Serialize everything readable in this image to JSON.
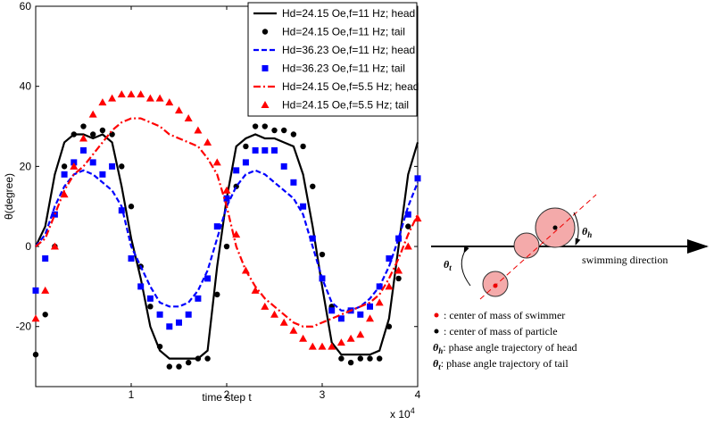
{
  "chart_data": {
    "type": "line",
    "x": [
      0,
      0.1,
      0.2,
      0.3,
      0.4,
      0.5,
      0.6,
      0.7,
      0.8,
      0.9,
      1,
      1.1,
      1.2,
      1.3,
      1.4,
      1.5,
      1.6,
      1.7,
      1.8,
      1.9,
      2,
      2.1,
      2.2,
      2.3,
      2.4,
      2.5,
      2.6,
      2.7,
      2.8,
      2.9,
      3,
      3.1,
      3.2,
      3.3,
      3.4,
      3.5,
      3.6,
      3.7,
      3.8,
      3.9,
      4
    ],
    "xlim": [
      0,
      4
    ],
    "xticks": [
      1,
      2,
      3,
      4
    ],
    "ylim": [
      -35,
      60
    ],
    "yticks": [
      -20,
      0,
      20,
      40,
      60
    ],
    "x_label": "time step t",
    "y_label": "θ(degree)",
    "x_multiplier": "x 10",
    "x_multiplier_exponent": "4",
    "legend": "upper right",
    "series": [
      {
        "name": "Hd=24.15 Oe,f=11 Hz; head",
        "color": "#000000",
        "style": "solid",
        "values": [
          0,
          5,
          18,
          26,
          28,
          28,
          27,
          28,
          26,
          15,
          2,
          -8,
          -20,
          -26,
          -28,
          -28,
          -28,
          -28,
          -26,
          -5,
          12,
          25,
          27,
          28,
          27,
          27,
          26,
          25,
          18,
          5,
          -10,
          -24,
          -27,
          -27,
          -27,
          -27,
          -26,
          -18,
          0,
          18,
          26
        ]
      },
      {
        "name": "Hd=24.15 Oe,f=11 Hz; tail",
        "color": "#000000",
        "style": "circle",
        "values": [
          -27,
          -17,
          0,
          20,
          28,
          30,
          28,
          29,
          28,
          20,
          10,
          -5,
          -15,
          -25,
          -30,
          -30,
          -29,
          -28,
          -28,
          -12,
          0,
          15,
          25,
          30,
          30,
          29,
          29,
          28,
          25,
          15,
          -2,
          -15,
          -28,
          -29,
          -28,
          -28,
          -28,
          -20,
          -8,
          5,
          17
        ]
      },
      {
        "name": "Hd=36.23 Oe,f=11 Hz; head",
        "color": "#0000ff",
        "style": "dashed",
        "values": [
          0,
          3,
          10,
          15,
          18,
          19,
          18,
          16,
          14,
          10,
          0,
          -5,
          -10,
          -14,
          -15,
          -15,
          -14,
          -11,
          -6,
          2,
          10,
          15,
          18,
          19,
          18,
          16,
          14,
          12,
          8,
          0,
          -8,
          -14,
          -16,
          -16,
          -15,
          -13,
          -10,
          -5,
          2,
          10,
          16
        ]
      },
      {
        "name": "Hd=36.23 Oe,f=11 Hz; tail",
        "color": "#0000ff",
        "style": "square",
        "values": [
          -11,
          -3,
          8,
          18,
          21,
          24,
          21,
          18,
          20,
          9,
          -3,
          -10,
          -13,
          -17,
          -20,
          -19,
          -17,
          -13,
          -8,
          5,
          12,
          19,
          21,
          24,
          24,
          24,
          20,
          16,
          10,
          2,
          -8,
          -16,
          -18,
          -16,
          -17,
          -15,
          -10,
          -3,
          2,
          8,
          17
        ]
      },
      {
        "name": "Hd=24.15 Oe,f=5.5 Hz; head",
        "color": "#ff0000",
        "style": "dashdot",
        "values": [
          0,
          2,
          8,
          14,
          18,
          20,
          23,
          26,
          29,
          31,
          32,
          32,
          31,
          30,
          28,
          27,
          26,
          25,
          22,
          18,
          10,
          0,
          -6,
          -10,
          -13,
          -15,
          -17,
          -19,
          -20,
          -20,
          -19,
          -18,
          -17,
          -16,
          -15,
          -14,
          -12,
          -8,
          -3,
          3,
          8
        ]
      },
      {
        "name": "Hd=24.15 Oe,f=5.5 Hz; tail",
        "color": "#ff0000",
        "style": "triangle",
        "values": [
          -18,
          -11,
          0,
          13,
          20,
          27,
          33,
          36,
          37,
          38,
          38,
          38,
          37,
          37,
          36,
          34,
          32,
          29,
          26,
          21,
          14,
          3,
          -6,
          -11,
          -15,
          -17,
          -19,
          -21,
          -23,
          -25,
          -25,
          -25,
          -24,
          -23,
          -22,
          -18,
          -14,
          -10,
          -6,
          0,
          7
        ]
      }
    ]
  },
  "diagram": {
    "theta": "θ",
    "h": "h",
    "t": "t",
    "axis_label": "swimming direction",
    "notes": [
      {
        "text": ": center of mass of swimmer"
      },
      {
        "text": ": center of mass of particle"
      },
      {
        "symbol": "θ",
        "sub": "h",
        "text": ": phase angle trajectory of head"
      },
      {
        "symbol": "θ",
        "sub": "t",
        "text": ": phase angle trajectory of tail"
      }
    ]
  }
}
